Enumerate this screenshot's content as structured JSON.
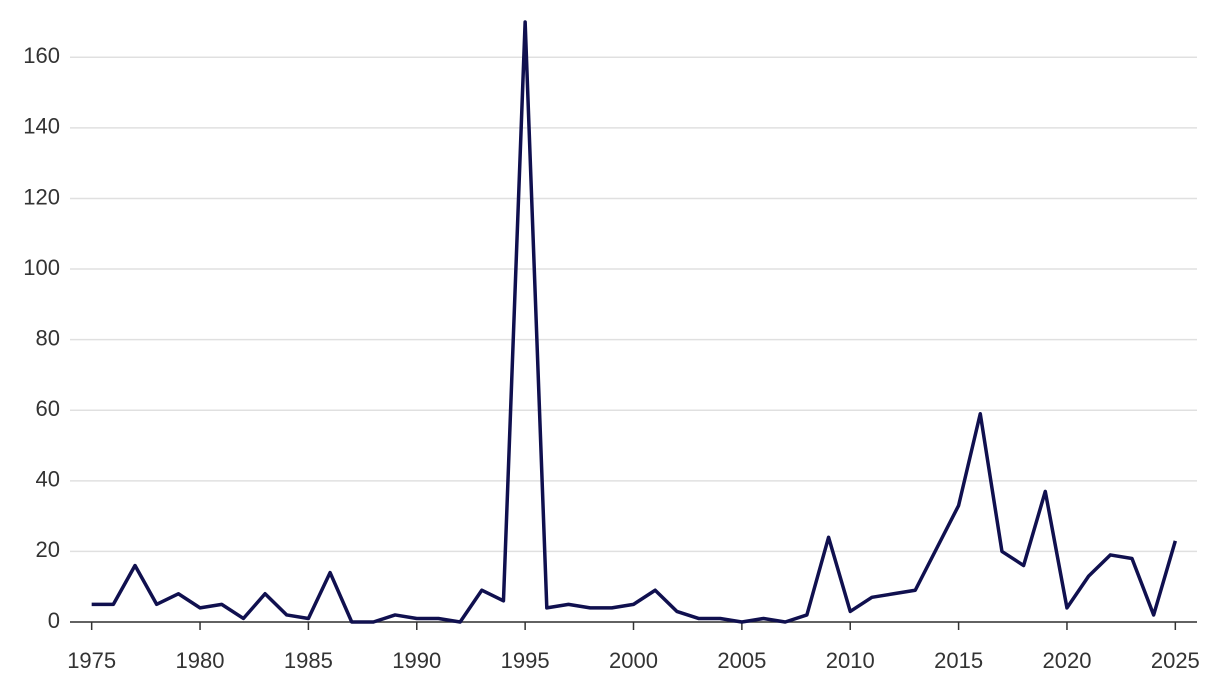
{
  "chart_data": {
    "type": "line",
    "x": [
      1975,
      1976,
      1977,
      1978,
      1979,
      1980,
      1981,
      1982,
      1983,
      1984,
      1985,
      1986,
      1987,
      1988,
      1989,
      1990,
      1991,
      1992,
      1993,
      1994,
      1995,
      1996,
      1997,
      1998,
      1999,
      2000,
      2001,
      2002,
      2003,
      2004,
      2005,
      2006,
      2007,
      2008,
      2009,
      2010,
      2011,
      2012,
      2013,
      2014,
      2015,
      2016,
      2017,
      2018,
      2019,
      2020,
      2021,
      2022,
      2023,
      2024,
      2025
    ],
    "series": [
      {
        "color": "#10104f",
        "values": [
          5,
          5,
          16,
          5,
          8,
          4,
          5,
          1,
          8,
          2,
          1,
          14,
          0,
          0,
          2,
          1,
          1,
          0,
          9,
          6,
          170,
          4,
          5,
          4,
          4,
          5,
          9,
          3,
          1,
          1,
          0,
          1,
          0,
          2,
          24,
          3,
          7,
          8,
          9,
          21,
          33,
          59,
          20,
          16,
          37,
          4,
          13,
          19,
          18,
          2,
          23
        ]
      }
    ],
    "xlim": [
      1974,
      2026
    ],
    "xticks": [
      1975,
      1980,
      1985,
      1990,
      1995,
      2000,
      2005,
      2010,
      2015,
      2020,
      2025
    ],
    "ylim": [
      0,
      170
    ],
    "yticks": [
      0,
      20,
      40,
      60,
      80,
      100,
      120,
      140,
      160
    ],
    "grid": true
  }
}
